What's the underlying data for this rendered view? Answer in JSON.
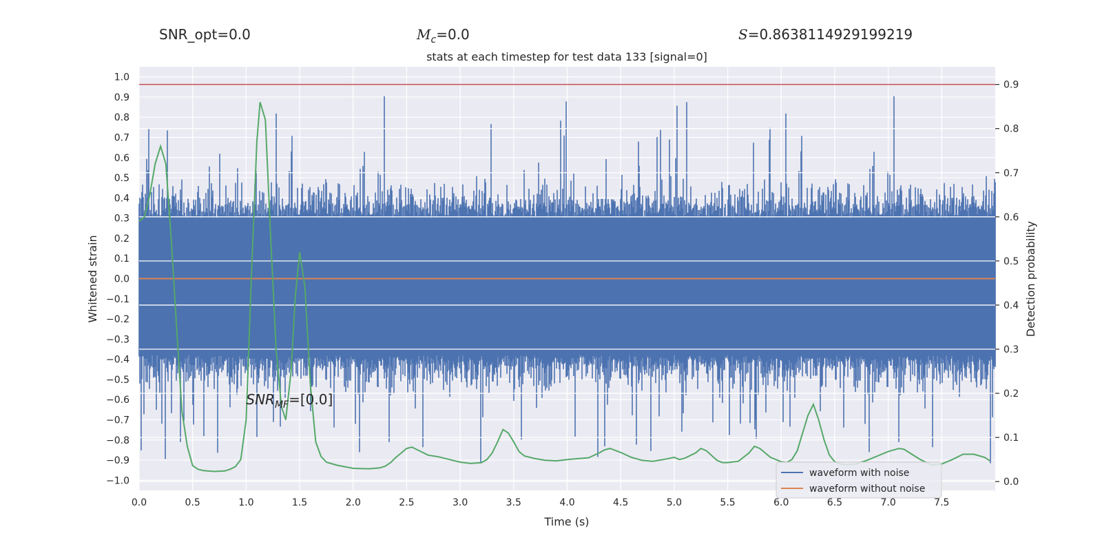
{
  "header": {
    "snr_opt": "SNR_opt=0.0",
    "mc_symbol": "M",
    "mc_sub": "c",
    "mc_value": "=0.0",
    "s_symbol": "S",
    "s_value": "=0.8638114929199219"
  },
  "chart_data": {
    "type": "line",
    "title": "stats at each timestep for test data 133 [signal=0]",
    "xlabel": "Time (s)",
    "ylabel": "Whitened strain",
    "y2label": "Detection probability",
    "xlim": [
      0.0,
      8.0
    ],
    "ylim": [
      -1.05,
      1.05
    ],
    "y2lim": [
      -0.02,
      0.94
    ],
    "xticks": [
      "0.0",
      "0.5",
      "1.0",
      "1.5",
      "2.0",
      "2.5",
      "3.0",
      "3.5",
      "4.0",
      "4.5",
      "5.0",
      "5.5",
      "6.0",
      "6.5",
      "7.0",
      "7.5"
    ],
    "yticks": [
      "1.0",
      "0.9",
      "0.8",
      "0.7",
      "0.6",
      "0.5",
      "0.4",
      "0.3",
      "0.2",
      "0.1",
      "0.0",
      "−0.1",
      "−0.2",
      "−0.3",
      "−0.4",
      "−0.5",
      "−0.6",
      "−0.7",
      "−0.8",
      "−0.9",
      "−1.0"
    ],
    "y2ticks": [
      "0.9",
      "0.8",
      "0.7",
      "0.6",
      "0.5",
      "0.4",
      "0.3",
      "0.2",
      "0.1",
      "0.0"
    ],
    "grid": true,
    "legend_position": "bottom-right",
    "threshold": 0.9,
    "annotation": {
      "base": "SNR",
      "sub": "MF",
      "value": "=[0.0]",
      "x": 1.0,
      "y": -0.6
    },
    "series": [
      {
        "name": "waveform with noise",
        "color": "#4c72b0",
        "description": "whitened noisy strain, dense noise between about -1.0 and 0.95",
        "noise_extent": [
          -1.0,
          0.95
        ]
      },
      {
        "name": "waveform without noise",
        "color": "#dd8452",
        "x": [
          0.0,
          8.0
        ],
        "values": [
          0.0,
          0.0
        ]
      },
      {
        "color": "#55a868",
        "x": [
          0.0,
          0.05,
          0.1,
          0.15,
          0.2,
          0.25,
          0.3,
          0.35,
          0.4,
          0.45,
          0.5,
          0.55,
          0.6,
          0.7,
          0.8,
          0.85,
          0.9,
          0.95,
          1.0,
          1.05,
          1.1,
          1.13,
          1.18,
          1.23,
          1.28,
          1.33,
          1.37,
          1.42,
          1.46,
          1.5,
          1.55,
          1.6,
          1.65,
          1.7,
          1.75,
          1.85,
          2.0,
          2.15,
          2.25,
          2.3,
          2.35,
          2.4,
          2.45,
          2.5,
          2.55,
          2.6,
          2.65,
          2.7,
          2.8,
          2.9,
          3.0,
          3.1,
          3.2,
          3.25,
          3.3,
          3.35,
          3.4,
          3.45,
          3.5,
          3.55,
          3.6,
          3.7,
          3.8,
          3.9,
          4.0,
          4.1,
          4.2,
          4.3,
          4.35,
          4.4,
          4.5,
          4.6,
          4.7,
          4.8,
          4.9,
          5.0,
          5.05,
          5.1,
          5.2,
          5.25,
          5.3,
          5.4,
          5.45,
          5.5,
          5.6,
          5.7,
          5.75,
          5.8,
          5.85,
          5.9,
          6.0,
          6.05,
          6.1,
          6.15,
          6.2,
          6.25,
          6.3,
          6.35,
          6.4,
          6.45,
          6.5,
          6.55,
          6.6,
          6.7,
          6.8,
          6.9,
          7.0,
          7.1,
          7.15,
          7.2,
          7.3,
          7.4,
          7.5,
          7.55,
          7.6,
          7.65,
          7.7,
          7.8,
          7.9,
          7.95
        ],
        "values": [
          0.59,
          0.6,
          0.65,
          0.72,
          0.76,
          0.72,
          0.55,
          0.35,
          0.16,
          0.08,
          0.036,
          0.028,
          0.025,
          0.023,
          0.024,
          0.028,
          0.034,
          0.05,
          0.14,
          0.47,
          0.77,
          0.86,
          0.82,
          0.55,
          0.3,
          0.17,
          0.14,
          0.25,
          0.42,
          0.52,
          0.44,
          0.22,
          0.09,
          0.057,
          0.044,
          0.037,
          0.03,
          0.029,
          0.031,
          0.035,
          0.043,
          0.055,
          0.065,
          0.075,
          0.078,
          0.072,
          0.066,
          0.06,
          0.056,
          0.05,
          0.044,
          0.041,
          0.043,
          0.05,
          0.065,
          0.09,
          0.118,
          0.11,
          0.09,
          0.068,
          0.058,
          0.052,
          0.048,
          0.047,
          0.05,
          0.052,
          0.054,
          0.065,
          0.072,
          0.075,
          0.066,
          0.055,
          0.048,
          0.046,
          0.05,
          0.055,
          0.05,
          0.053,
          0.065,
          0.075,
          0.07,
          0.048,
          0.043,
          0.043,
          0.046,
          0.065,
          0.08,
          0.075,
          0.065,
          0.055,
          0.045,
          0.043,
          0.05,
          0.07,
          0.11,
          0.15,
          0.175,
          0.14,
          0.095,
          0.06,
          0.045,
          0.04,
          0.038,
          0.04,
          0.048,
          0.058,
          0.068,
          0.075,
          0.073,
          0.065,
          0.05,
          0.038,
          0.04,
          0.045,
          0.05,
          0.056,
          0.062,
          0.062,
          0.055,
          0.047
        ]
      }
    ]
  }
}
